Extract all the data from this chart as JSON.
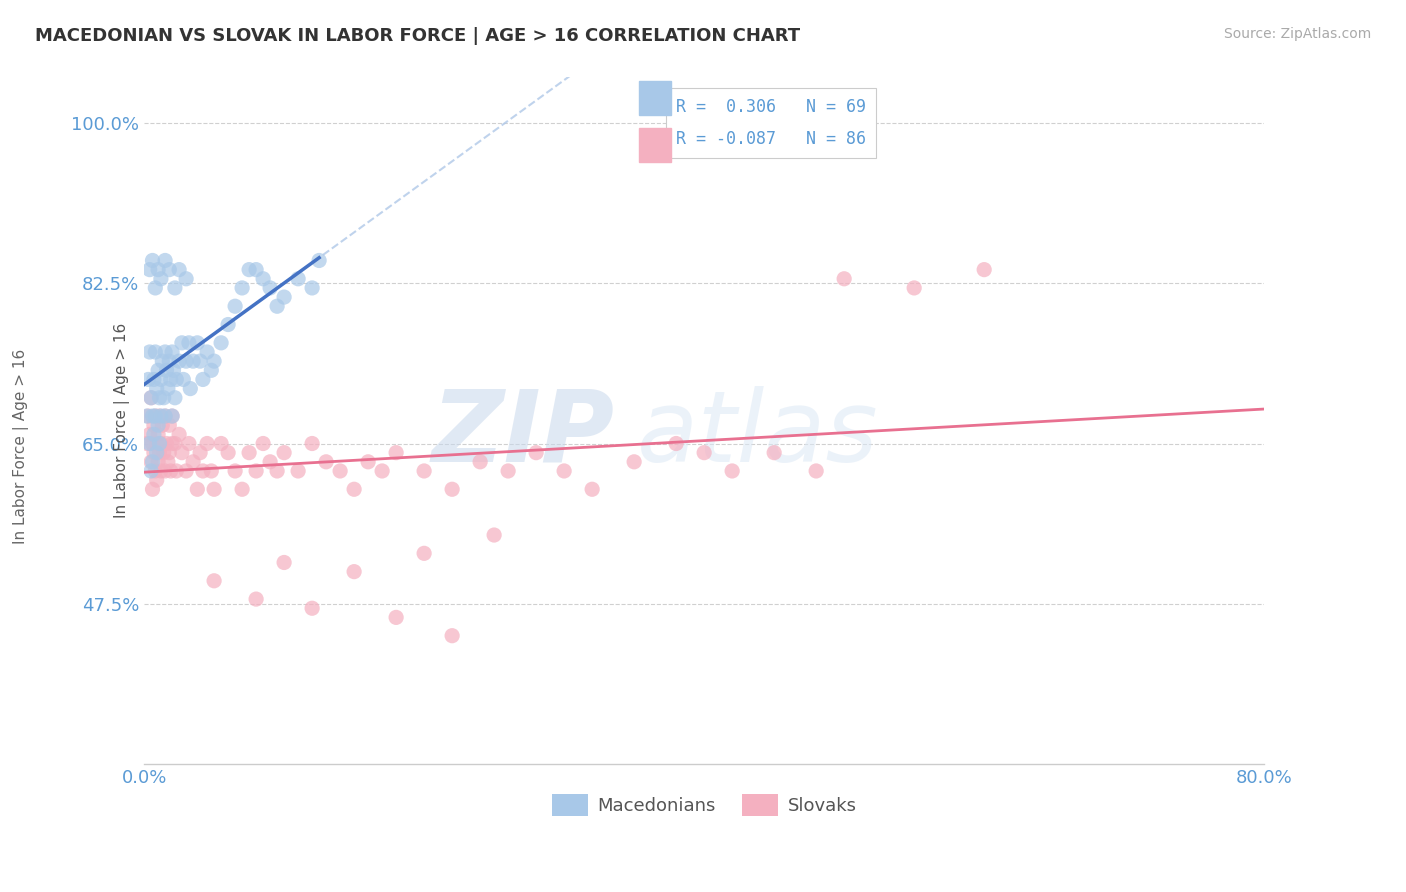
{
  "title": "MACEDONIAN VS SLOVAK IN LABOR FORCE | AGE > 16 CORRELATION CHART",
  "source_text": "Source: ZipAtlas.com",
  "ylabel": "In Labor Force | Age > 16",
  "xlim": [
    0.0,
    0.8
  ],
  "ylim": [
    0.3,
    1.05
  ],
  "xticks": [
    0.0,
    0.8
  ],
  "xticklabels": [
    "0.0%",
    "80.0%"
  ],
  "yticks": [
    0.475,
    0.65,
    0.825,
    1.0
  ],
  "yticklabels": [
    "47.5%",
    "65.0%",
    "82.5%",
    "100.0%"
  ],
  "macedonian_R": 0.306,
  "macedonian_N": 69,
  "slovak_R": -0.087,
  "slovak_N": 86,
  "macedonian_color": "#a8c8e8",
  "slovak_color": "#f4b0c0",
  "trend_macedonian_dashed_color": "#b0c8e8",
  "trend_macedonian_solid_color": "#4472c4",
  "trend_slovak_color": "#e87090",
  "background_color": "#ffffff",
  "grid_color": "#d0d0d0",
  "watermark": "ZIPatlas",
  "watermark_color": "#dce8f5",
  "title_color": "#333333",
  "axis_label_color": "#5b9bd5",
  "legend_R_color": "#5b9bd5",
  "mac_x": [
    0.002,
    0.003,
    0.004,
    0.004,
    0.005,
    0.005,
    0.006,
    0.006,
    0.007,
    0.007,
    0.008,
    0.008,
    0.009,
    0.009,
    0.01,
    0.01,
    0.011,
    0.011,
    0.012,
    0.012,
    0.013,
    0.014,
    0.015,
    0.015,
    0.016,
    0.017,
    0.018,
    0.019,
    0.02,
    0.02,
    0.021,
    0.022,
    0.023,
    0.025,
    0.027,
    0.028,
    0.03,
    0.032,
    0.033,
    0.035,
    0.038,
    0.04,
    0.042,
    0.045,
    0.048,
    0.05,
    0.055,
    0.06,
    0.065,
    0.07,
    0.075,
    0.08,
    0.085,
    0.09,
    0.095,
    0.1,
    0.11,
    0.12,
    0.125,
    0.004,
    0.006,
    0.008,
    0.01,
    0.012,
    0.015,
    0.018,
    0.022,
    0.025,
    0.03
  ],
  "mac_y": [
    0.68,
    0.72,
    0.75,
    0.65,
    0.7,
    0.62,
    0.68,
    0.63,
    0.72,
    0.66,
    0.75,
    0.68,
    0.71,
    0.64,
    0.73,
    0.67,
    0.7,
    0.65,
    0.72,
    0.68,
    0.74,
    0.7,
    0.75,
    0.68,
    0.73,
    0.71,
    0.74,
    0.72,
    0.75,
    0.68,
    0.73,
    0.7,
    0.72,
    0.74,
    0.76,
    0.72,
    0.74,
    0.76,
    0.71,
    0.74,
    0.76,
    0.74,
    0.72,
    0.75,
    0.73,
    0.74,
    0.76,
    0.78,
    0.8,
    0.82,
    0.84,
    0.84,
    0.83,
    0.82,
    0.8,
    0.81,
    0.83,
    0.82,
    0.85,
    0.84,
    0.85,
    0.82,
    0.84,
    0.83,
    0.85,
    0.84,
    0.82,
    0.84,
    0.83
  ],
  "slo_x": [
    0.002,
    0.003,
    0.004,
    0.005,
    0.005,
    0.006,
    0.006,
    0.007,
    0.007,
    0.008,
    0.008,
    0.009,
    0.009,
    0.01,
    0.01,
    0.011,
    0.011,
    0.012,
    0.012,
    0.013,
    0.014,
    0.015,
    0.015,
    0.016,
    0.017,
    0.018,
    0.018,
    0.019,
    0.02,
    0.02,
    0.022,
    0.023,
    0.025,
    0.027,
    0.03,
    0.032,
    0.035,
    0.038,
    0.04,
    0.042,
    0.045,
    0.048,
    0.05,
    0.055,
    0.06,
    0.065,
    0.07,
    0.075,
    0.08,
    0.085,
    0.09,
    0.095,
    0.1,
    0.11,
    0.12,
    0.13,
    0.14,
    0.15,
    0.16,
    0.17,
    0.18,
    0.2,
    0.22,
    0.24,
    0.26,
    0.28,
    0.3,
    0.32,
    0.35,
    0.38,
    0.4,
    0.42,
    0.45,
    0.48,
    0.5,
    0.55,
    0.6,
    0.05,
    0.1,
    0.15,
    0.2,
    0.25,
    0.08,
    0.12,
    0.18,
    0.22
  ],
  "slo_y": [
    0.65,
    0.68,
    0.66,
    0.63,
    0.7,
    0.65,
    0.6,
    0.67,
    0.64,
    0.68,
    0.62,
    0.65,
    0.61,
    0.66,
    0.63,
    0.68,
    0.64,
    0.65,
    0.62,
    0.67,
    0.64,
    0.68,
    0.62,
    0.65,
    0.63,
    0.67,
    0.64,
    0.62,
    0.65,
    0.68,
    0.65,
    0.62,
    0.66,
    0.64,
    0.62,
    0.65,
    0.63,
    0.6,
    0.64,
    0.62,
    0.65,
    0.62,
    0.6,
    0.65,
    0.64,
    0.62,
    0.6,
    0.64,
    0.62,
    0.65,
    0.63,
    0.62,
    0.64,
    0.62,
    0.65,
    0.63,
    0.62,
    0.6,
    0.63,
    0.62,
    0.64,
    0.62,
    0.6,
    0.63,
    0.62,
    0.64,
    0.62,
    0.6,
    0.63,
    0.65,
    0.64,
    0.62,
    0.64,
    0.62,
    0.83,
    0.82,
    0.84,
    0.5,
    0.52,
    0.51,
    0.53,
    0.55,
    0.48,
    0.47,
    0.46,
    0.44
  ]
}
